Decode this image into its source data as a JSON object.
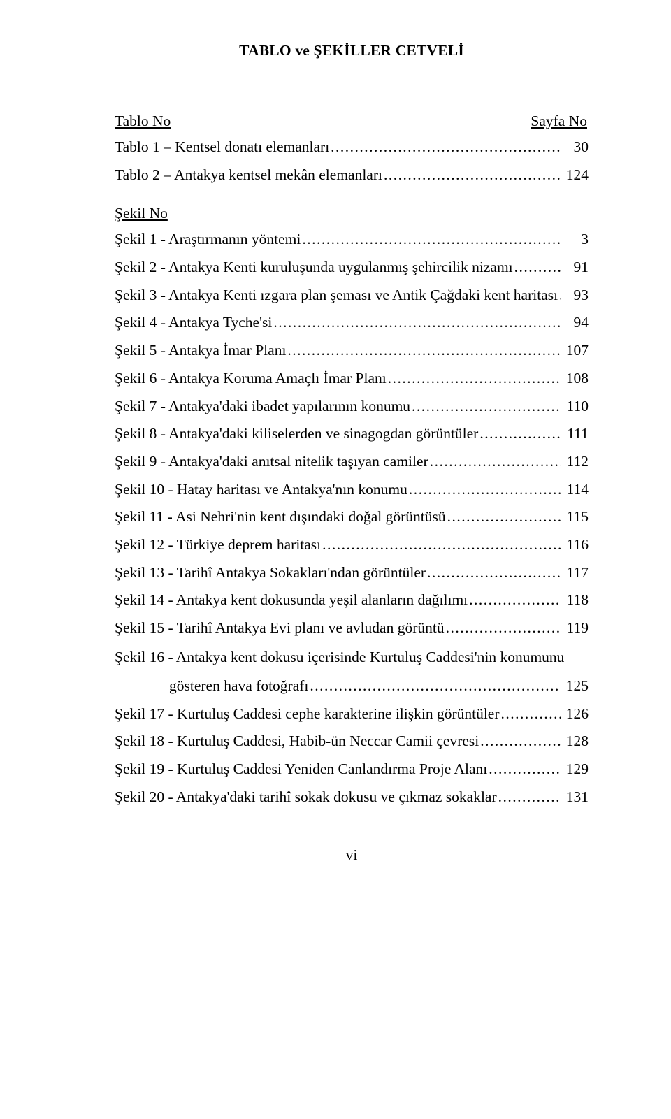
{
  "title": "TABLO ve ŞEKİLLER CETVELİ",
  "header_left": "Tablo No",
  "header_right": "Sayfa No",
  "tablo_entries": [
    {
      "label": "Tablo 1 – Kentsel donatı elemanları",
      "page": "30"
    },
    {
      "label": "Tablo 2 – Antakya kentsel mekân elemanları",
      "page": "124"
    }
  ],
  "sekil_header": "Şekil No",
  "sekil_entries": [
    {
      "label": "Şekil 1 - Araştırmanın yöntemi",
      "page": "3"
    },
    {
      "label": "Şekil 2 - Antakya Kenti kuruluşunda uygulanmış şehircilik nizamı",
      "page": "91"
    },
    {
      "label": "Şekil 3 - Antakya Kenti ızgara plan şeması ve Antik Çağdaki kent haritası",
      "page": "93"
    },
    {
      "label": "Şekil 4 - Antakya Tyche'si",
      "page": "94"
    },
    {
      "label": "Şekil 5 - Antakya İmar Planı",
      "page": "107"
    },
    {
      "label": "Şekil 6 - Antakya Koruma Amaçlı İmar Planı",
      "page": "108"
    },
    {
      "label": "Şekil 7 - Antakya'daki ibadet yapılarının konumu",
      "page": "110"
    },
    {
      "label": "Şekil 8 - Antakya'daki kiliselerden ve sinagogdan görüntüler",
      "page": "111"
    },
    {
      "label": "Şekil 9 - Antakya'daki anıtsal nitelik taşıyan camiler",
      "page": "112"
    },
    {
      "label": "Şekil 10 - Hatay haritası ve Antakya'nın konumu",
      "page": "114"
    },
    {
      "label": "Şekil 11 - Asi Nehri'nin kent dışındaki doğal görüntüsü",
      "page": "115"
    },
    {
      "label": "Şekil 12 - Türkiye deprem haritası",
      "page": "116"
    },
    {
      "label": "Şekil 13 - Tarihî Antakya Sokakları'ndan görüntüler",
      "page": "117"
    },
    {
      "label": "Şekil 14 - Antakya kent dokusunda yeşil alanların dağılımı",
      "page": "118"
    },
    {
      "label": "Şekil 15 - Tarihî Antakya Evi planı ve avludan görüntü",
      "page": "119"
    }
  ],
  "sekil_multiline": {
    "line1": "Şekil 16 - Antakya kent dokusu içerisinde Kurtuluş Caddesi'nin konumunu",
    "line2": "gösteren hava fotoğrafı",
    "page": "125"
  },
  "sekil_entries_after": [
    {
      "label": "Şekil 17 - Kurtuluş Caddesi cephe karakterine ilişkin görüntüler",
      "page": "126"
    },
    {
      "label": "Şekil 18 - Kurtuluş Caddesi, Habib-ün Neccar Camii çevresi",
      "page": "128"
    },
    {
      "label": "Şekil 19 - Kurtuluş Caddesi Yeniden Canlandırma Proje Alanı",
      "page": "129"
    },
    {
      "label": "Şekil 20 - Antakya'daki tarihî sokak dokusu ve çıkmaz sokaklar",
      "page": "131"
    }
  ],
  "footer": "vi"
}
